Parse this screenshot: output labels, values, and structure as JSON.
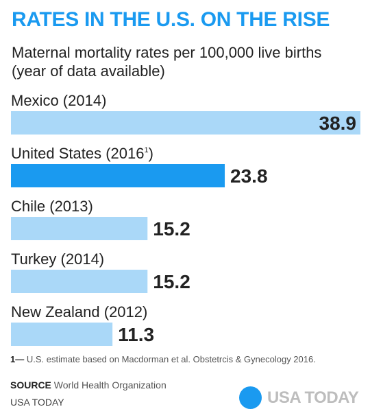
{
  "header": {
    "title": "RATES IN THE U.S. ON THE RISE",
    "subtitle": "Maternal mortality rates per 100,000 live births (year of data available)"
  },
  "chart_data": {
    "type": "bar",
    "orientation": "horizontal",
    "title": "RATES IN THE U.S. ON THE RISE",
    "subtitle": "Maternal mortality rates per 100,000 live births (year of data available)",
    "categories": [
      "Mexico (2014)",
      "United States (2016",
      "Chile (2013)",
      "Turkey (2014)",
      "New Zealand (2012)"
    ],
    "category_superscripts": [
      "",
      "1",
      "",
      "",
      ""
    ],
    "category_suffix": [
      "",
      ")",
      "",
      "",
      ""
    ],
    "values": [
      38.9,
      23.8,
      15.2,
      15.2,
      11.3
    ],
    "value_labels": [
      "38.9",
      "23.8",
      "15.2",
      "15.2",
      "11.3"
    ],
    "highlight_index": 1,
    "colors": {
      "default": "#aad8f8",
      "highlight": "#1a9af0"
    },
    "grid": false,
    "legend": "none"
  },
  "footer": {
    "footnote_mark": "1—",
    "footnote_text": " U.S. estimate based on Macdorman et al. Obstetrcis & Gynecology 2016.",
    "source_label": "SOURCE",
    "source_text": " World Health Organization",
    "credit": "USA TODAY",
    "logo_text": "USA TODAY"
  }
}
